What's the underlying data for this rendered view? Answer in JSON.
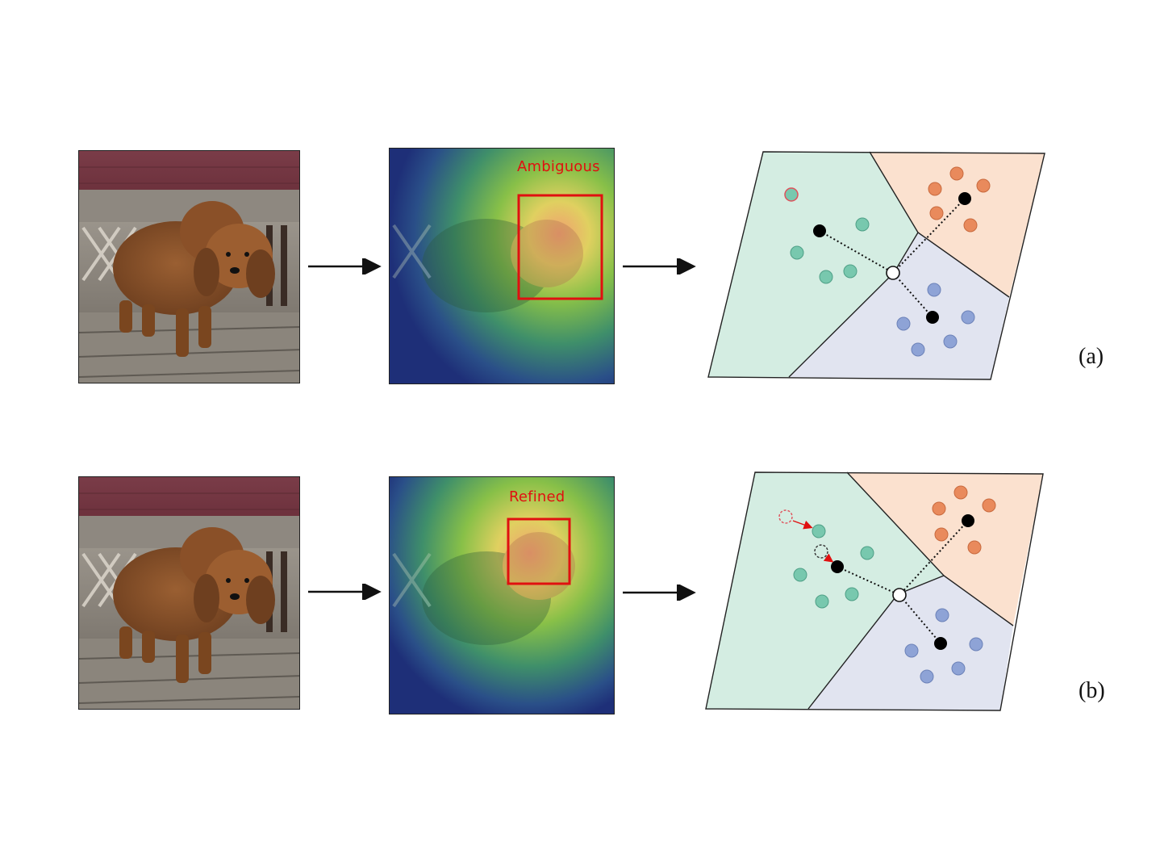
{
  "rows": [
    {
      "id": "a",
      "tag": "(a)",
      "heatmap_label": "Ambiguous"
    },
    {
      "id": "b",
      "tag": "(b)",
      "heatmap_label": "Refined"
    }
  ],
  "colors": {
    "region_green": "#d4ede2",
    "region_orange": "#fbe1cf",
    "region_blue": "#e1e4f0",
    "point_teal": "#78c8ae",
    "point_orange": "#e98a5c",
    "point_blue": "#8ea3d6",
    "box_red": "#e01010",
    "arrow": "#111111"
  }
}
